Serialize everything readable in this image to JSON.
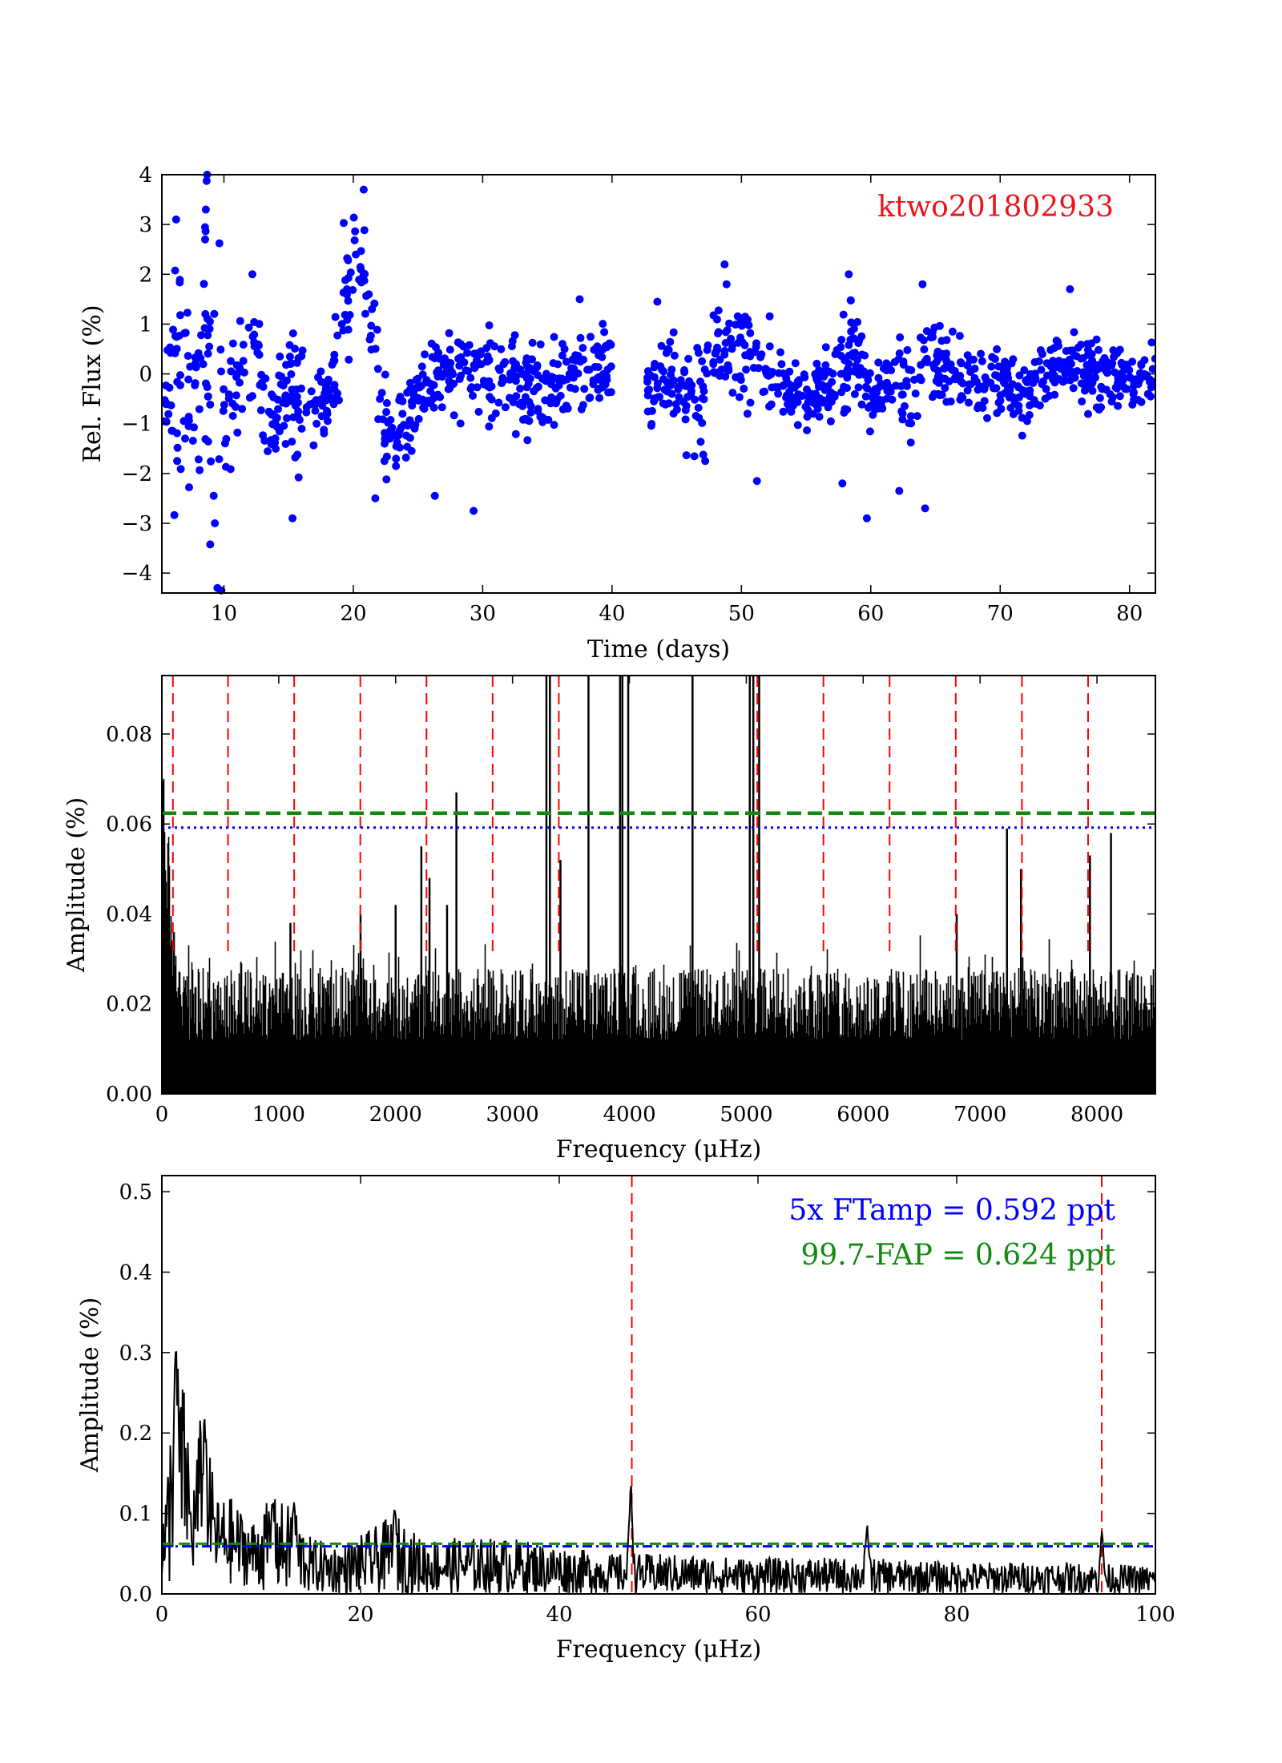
{
  "chart_data": [
    {
      "type": "scatter",
      "id": "lightcurve",
      "xlabel": "Time (days)",
      "ylabel": "Rel. Flux (%)",
      "xlim": [
        5.2,
        82
      ],
      "ylim": [
        -4.4,
        4
      ],
      "xticks": [
        10,
        20,
        30,
        40,
        50,
        60,
        70,
        80
      ],
      "yticks": [
        -4,
        -3,
        -2,
        -1,
        0,
        1,
        2,
        3,
        4
      ],
      "ytick_labels": [
        "−4",
        "−3",
        "−2",
        "−1",
        "0",
        "1",
        "2",
        "3",
        "4"
      ],
      "annotation": "ktwo201802933",
      "marker_color": "#0000ff",
      "annotation_color": "#e8161a",
      "gap": [
        40,
        42.7
      ],
      "envelope": [
        {
          "x": 5.5,
          "lo": -1.2,
          "hi": 0.0
        },
        {
          "x": 6.5,
          "lo": -1.5,
          "hi": 2.6
        },
        {
          "x": 7.5,
          "lo": -2.0,
          "hi": 0.5
        },
        {
          "x": 8.5,
          "lo": -2.3,
          "hi": 3.2
        },
        {
          "x": 9.5,
          "lo": -4.2,
          "hi": 2.5
        },
        {
          "x": 10.5,
          "lo": -1.5,
          "hi": 0.8
        },
        {
          "x": 11.5,
          "lo": -1.0,
          "hi": 1.2
        },
        {
          "x": 12.5,
          "lo": -0.2,
          "hi": 1.6
        },
        {
          "x": 13.5,
          "lo": -2.4,
          "hi": -0.2
        },
        {
          "x": 14.5,
          "lo": -1.5,
          "hi": 0.8
        },
        {
          "x": 15.5,
          "lo": -2.2,
          "hi": 1.9
        },
        {
          "x": 16.5,
          "lo": -1.5,
          "hi": -0.3
        },
        {
          "x": 17.5,
          "lo": -1.3,
          "hi": 0.2
        },
        {
          "x": 18.5,
          "lo": -1.0,
          "hi": 0.5
        },
        {
          "x": 19.5,
          "lo": 0.5,
          "hi": 2.8
        },
        {
          "x": 20.5,
          "lo": 0.8,
          "hi": 3.5
        },
        {
          "x": 21.5,
          "lo": -0.3,
          "hi": 1.8
        },
        {
          "x": 22.5,
          "lo": -2.3,
          "hi": -0.5
        },
        {
          "x": 23.5,
          "lo": -2.3,
          "hi": -0.6
        },
        {
          "x": 24.5,
          "lo": -1.5,
          "hi": 0.0
        },
        {
          "x": 25.5,
          "lo": -0.8,
          "hi": 0.4
        },
        {
          "x": 27.5,
          "lo": -1.0,
          "hi": 0.8
        },
        {
          "x": 28.5,
          "lo": -0.8,
          "hi": 1.2
        },
        {
          "x": 30,
          "lo": -1.0,
          "hi": 0.6
        },
        {
          "x": 31.5,
          "lo": -0.6,
          "hi": 1.0
        },
        {
          "x": 33,
          "lo": -1.0,
          "hi": 0.4
        },
        {
          "x": 35,
          "lo": -1.2,
          "hi": 0.5
        },
        {
          "x": 37,
          "lo": -0.5,
          "hi": 0.8
        },
        {
          "x": 39.5,
          "lo": -0.8,
          "hi": 0.7
        },
        {
          "x": 43,
          "lo": -0.8,
          "hi": 0.4
        },
        {
          "x": 45,
          "lo": -0.8,
          "hi": 0.6
        },
        {
          "x": 46.5,
          "lo": -1.4,
          "hi": 0.5
        },
        {
          "x": 48,
          "lo": -0.6,
          "hi": 1.2
        },
        {
          "x": 49.5,
          "lo": -0.3,
          "hi": 1.5
        },
        {
          "x": 51,
          "lo": -0.4,
          "hi": 1.0
        },
        {
          "x": 53,
          "lo": -0.8,
          "hi": 0.3
        },
        {
          "x": 55,
          "lo": -1.2,
          "hi": 0.2
        },
        {
          "x": 57,
          "lo": -0.8,
          "hi": 0.4
        },
        {
          "x": 58.5,
          "lo": -0.4,
          "hi": 1.4
        },
        {
          "x": 60,
          "lo": -1.3,
          "hi": 0.1
        },
        {
          "x": 62,
          "lo": -0.6,
          "hi": 0.6
        },
        {
          "x": 63,
          "lo": -1.6,
          "hi": 0.6
        },
        {
          "x": 64.5,
          "lo": -0.2,
          "hi": 1.0
        },
        {
          "x": 66,
          "lo": -0.6,
          "hi": 0.6
        },
        {
          "x": 68,
          "lo": -0.9,
          "hi": 0.4
        },
        {
          "x": 70,
          "lo": -0.6,
          "hi": 0.5
        },
        {
          "x": 72,
          "lo": -1.0,
          "hi": 0.4
        },
        {
          "x": 74,
          "lo": -0.5,
          "hi": 0.6
        },
        {
          "x": 76,
          "lo": -0.4,
          "hi": 0.8
        },
        {
          "x": 78,
          "lo": -0.8,
          "hi": 0.6
        },
        {
          "x": 80,
          "lo": -0.6,
          "hi": 0.6
        },
        {
          "x": 82,
          "lo": -0.8,
          "hi": 0.5
        }
      ],
      "outliers": [
        {
          "x": 8.7,
          "y": 4.0
        },
        {
          "x": 9.5,
          "y": -4.3
        },
        {
          "x": 9.8,
          "y": -4.35
        },
        {
          "x": 9.3,
          "y": -3.0
        },
        {
          "x": 20.8,
          "y": 3.7
        },
        {
          "x": 15.3,
          "y": -2.9
        },
        {
          "x": 29.3,
          "y": -2.75
        },
        {
          "x": 59.7,
          "y": -2.9
        },
        {
          "x": 64.2,
          "y": -2.7
        },
        {
          "x": 62.2,
          "y": -2.35
        },
        {
          "x": 51.2,
          "y": -2.15
        },
        {
          "x": 48.7,
          "y": 2.2
        },
        {
          "x": 58.3,
          "y": 2.0
        },
        {
          "x": 64.0,
          "y": 1.8
        },
        {
          "x": 75.4,
          "y": 1.7
        },
        {
          "x": 37.5,
          "y": 1.5
        },
        {
          "x": 43.5,
          "y": 1.45
        },
        {
          "x": 12.2,
          "y": 2.0
        },
        {
          "x": 47.2,
          "y": -1.75
        },
        {
          "x": 57.8,
          "y": -2.2
        },
        {
          "x": 21.7,
          "y": -2.5
        },
        {
          "x": 26.3,
          "y": -2.45
        },
        {
          "x": 6.3,
          "y": 3.1
        },
        {
          "x": 8.6,
          "y": 3.3
        }
      ]
    },
    {
      "type": "line",
      "id": "periodogram_full",
      "xlabel": "Frequency (μHz)",
      "ylabel": "Amplitude (%)",
      "xlim": [
        0,
        8500
      ],
      "ylim": [
        0,
        0.093
      ],
      "xticks": [
        0,
        1000,
        2000,
        3000,
        4000,
        5000,
        6000,
        7000,
        8000
      ],
      "yticks": [
        0,
        0.02,
        0.04,
        0.06,
        0.08
      ],
      "ytick_labels": [
        "0.00",
        "0.02",
        "0.04",
        "0.06",
        "0.08"
      ],
      "line_color": "#000000",
      "noise_level": {
        "base": 0.012,
        "spread": 0.016
      },
      "low_freq_excess": {
        "peak": 0.093,
        "decay_uhz": 120
      },
      "peaks": [
        {
          "x": 2220,
          "y": 0.055
        },
        {
          "x": 2290,
          "y": 0.048
        },
        {
          "x": 2520,
          "y": 0.067
        },
        {
          "x": 2440,
          "y": 0.042
        },
        {
          "x": 3290,
          "y": 0.093
        },
        {
          "x": 3320,
          "y": 0.093
        },
        {
          "x": 3410,
          "y": 0.052
        },
        {
          "x": 3650,
          "y": 0.093
        },
        {
          "x": 3920,
          "y": 0.093
        },
        {
          "x": 3940,
          "y": 0.093
        },
        {
          "x": 3990,
          "y": 0.093
        },
        {
          "x": 4540,
          "y": 0.093
        },
        {
          "x": 5030,
          "y": 0.093
        },
        {
          "x": 5060,
          "y": 0.093
        },
        {
          "x": 5110,
          "y": 0.093
        },
        {
          "x": 7230,
          "y": 0.059
        },
        {
          "x": 7350,
          "y": 0.05
        },
        {
          "x": 7940,
          "y": 0.053
        },
        {
          "x": 8120,
          "y": 0.058
        },
        {
          "x": 6800,
          "y": 0.04
        },
        {
          "x": 1100,
          "y": 0.038
        },
        {
          "x": 1700,
          "y": 0.04
        },
        {
          "x": 2000,
          "y": 0.042
        }
      ],
      "thresholds": [
        {
          "name": "99.7-FAP",
          "y": 0.0624,
          "color": "#118a11",
          "style": "dashed"
        },
        {
          "name": "5x FTamp",
          "y": 0.0592,
          "color": "#0000ff",
          "style": "dotted"
        }
      ],
      "vlines": [
        94.6,
        566,
        1132,
        1698,
        2264,
        2830,
        3396,
        5094,
        5660,
        6226,
        6792,
        7358,
        7924
      ],
      "vline_color": "#ff0000"
    },
    {
      "type": "line",
      "id": "periodogram_zoom",
      "xlabel": "Frequency (μHz)",
      "ylabel": "Amplitude (%)",
      "xlim": [
        0,
        100
      ],
      "ylim": [
        0,
        0.52
      ],
      "xticks": [
        0,
        20,
        40,
        60,
        80,
        100
      ],
      "yticks": [
        0,
        0.1,
        0.2,
        0.3,
        0.4,
        0.5
      ],
      "ytick_labels": [
        "0.0",
        "0.1",
        "0.2",
        "0.3",
        "0.4",
        "0.5"
      ],
      "line_color": "#000000",
      "profile": [
        {
          "x": 0,
          "lo": 0.0,
          "hi": 0.1
        },
        {
          "x": 0.5,
          "lo": 0.0,
          "hi": 0.14
        },
        {
          "x": 1.2,
          "lo": 0.02,
          "hi": 0.3
        },
        {
          "x": 1.7,
          "lo": 0.05,
          "hi": 0.29
        },
        {
          "x": 2.5,
          "lo": 0.04,
          "hi": 0.24
        },
        {
          "x": 3.0,
          "lo": 0.02,
          "hi": 0.12
        },
        {
          "x": 3.8,
          "lo": 0.04,
          "hi": 0.22
        },
        {
          "x": 4.5,
          "lo": 0.03,
          "hi": 0.2
        },
        {
          "x": 5.5,
          "lo": 0.02,
          "hi": 0.12
        },
        {
          "x": 7,
          "lo": 0.01,
          "hi": 0.12
        },
        {
          "x": 9,
          "lo": 0.01,
          "hi": 0.09
        },
        {
          "x": 11,
          "lo": 0.0,
          "hi": 0.12
        },
        {
          "x": 13,
          "lo": 0.0,
          "hi": 0.11
        },
        {
          "x": 15,
          "lo": 0.0,
          "hi": 0.07
        },
        {
          "x": 18,
          "lo": 0.0,
          "hi": 0.06
        },
        {
          "x": 21,
          "lo": 0.0,
          "hi": 0.08
        },
        {
          "x": 23.5,
          "lo": 0.0,
          "hi": 0.1
        },
        {
          "x": 26,
          "lo": 0.0,
          "hi": 0.07
        },
        {
          "x": 30,
          "lo": 0.0,
          "hi": 0.07
        },
        {
          "x": 35,
          "lo": 0.0,
          "hi": 0.07
        },
        {
          "x": 40,
          "lo": 0.0,
          "hi": 0.06
        },
        {
          "x": 45,
          "lo": 0.0,
          "hi": 0.05
        },
        {
          "x": 50,
          "lo": 0.0,
          "hi": 0.05
        },
        {
          "x": 60,
          "lo": 0.0,
          "hi": 0.045
        },
        {
          "x": 70,
          "lo": 0.0,
          "hi": 0.045
        },
        {
          "x": 80,
          "lo": 0.0,
          "hi": 0.04
        },
        {
          "x": 90,
          "lo": 0.0,
          "hi": 0.04
        },
        {
          "x": 100,
          "lo": 0.0,
          "hi": 0.035
        }
      ],
      "peaks": [
        {
          "x": 47.2,
          "y": 0.145
        },
        {
          "x": 71.0,
          "y": 0.085
        },
        {
          "x": 94.6,
          "y": 0.08
        },
        {
          "x": 23.4,
          "y": 0.105
        },
        {
          "x": 11.2,
          "y": 0.12
        },
        {
          "x": 13.3,
          "y": 0.115
        },
        {
          "x": 1.4,
          "y": 0.305
        },
        {
          "x": 4.3,
          "y": 0.22
        }
      ],
      "thresholds": [
        {
          "name": "99.7-FAP",
          "y": 0.0624,
          "color": "#118a11",
          "style": "dashed"
        },
        {
          "name": "5x FTamp",
          "y": 0.0592,
          "color": "#0000ff",
          "style": "dashdot"
        }
      ],
      "vlines": [
        47.3,
        94.6
      ],
      "vline_color": "#ff0000",
      "annotations": [
        {
          "text": "5x FTamp = 0.592 ppt",
          "color": "#0000ff"
        },
        {
          "text": "99.7-FAP = 0.624 ppt",
          "color": "#118a11"
        }
      ]
    }
  ]
}
